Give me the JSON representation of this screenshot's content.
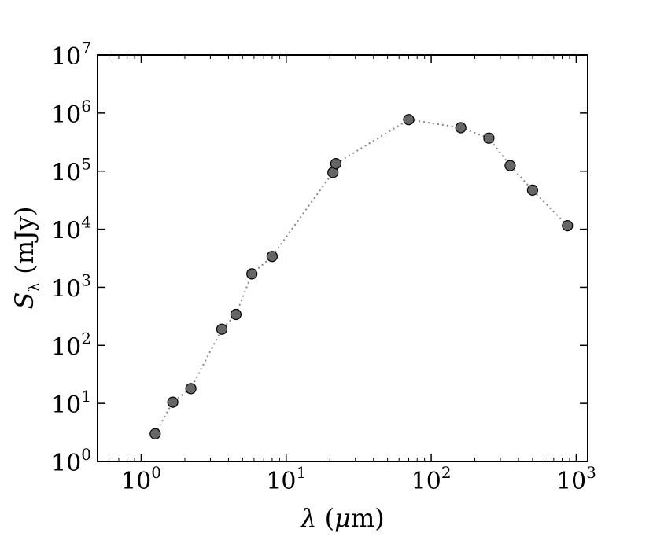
{
  "chart_data": {
    "type": "scatter",
    "title": "",
    "xlabel": "λ (μm)",
    "ylabel": "Sλ (mJy)",
    "x_scale": "log",
    "y_scale": "log",
    "xlim": [
      0.5,
      1200
    ],
    "ylim": [
      1,
      10000000
    ],
    "x_ticks": [
      {
        "base": "10",
        "exp": "0",
        "value": 1
      },
      {
        "base": "10",
        "exp": "1",
        "value": 10
      },
      {
        "base": "10",
        "exp": "2",
        "value": 100
      },
      {
        "base": "10",
        "exp": "3",
        "value": 1000
      }
    ],
    "y_ticks": [
      {
        "base": "10",
        "exp": "0",
        "value": 1
      },
      {
        "base": "10",
        "exp": "1",
        "value": 10
      },
      {
        "base": "10",
        "exp": "2",
        "value": 100
      },
      {
        "base": "10",
        "exp": "3",
        "value": 1000
      },
      {
        "base": "10",
        "exp": "4",
        "value": 10000
      },
      {
        "base": "10",
        "exp": "5",
        "value": 100000
      },
      {
        "base": "10",
        "exp": "6",
        "value": 1000000
      },
      {
        "base": "10",
        "exp": "7",
        "value": 10000000
      }
    ],
    "grid": false,
    "series": [
      {
        "marker_color": "#666666",
        "line_style": "dotted",
        "line_color": "#888888",
        "points": [
          {
            "x": 1.25,
            "y": 3
          },
          {
            "x": 1.65,
            "y": 10.5
          },
          {
            "x": 2.2,
            "y": 18
          },
          {
            "x": 3.6,
            "y": 190
          },
          {
            "x": 4.5,
            "y": 340
          },
          {
            "x": 5.8,
            "y": 1700
          },
          {
            "x": 8.0,
            "y": 3400
          },
          {
            "x": 21,
            "y": 95000
          },
          {
            "x": 22,
            "y": 135000
          },
          {
            "x": 70,
            "y": 770000
          },
          {
            "x": 160,
            "y": 560000
          },
          {
            "x": 250,
            "y": 370000
          },
          {
            "x": 350,
            "y": 125000
          },
          {
            "x": 500,
            "y": 47000
          },
          {
            "x": 870,
            "y": 11500
          }
        ]
      }
    ]
  }
}
